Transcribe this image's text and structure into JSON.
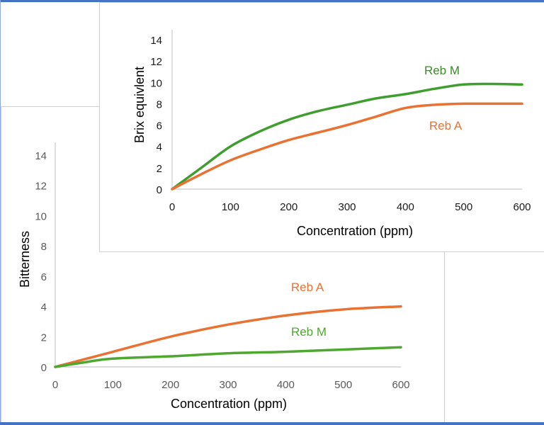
{
  "chart_data": [
    {
      "type": "line",
      "xlabel": "Concentration (ppm)",
      "ylabel": "Bitterness",
      "xlim": [
        0,
        600
      ],
      "ylim": [
        0,
        14
      ],
      "xticks": [
        "0",
        "100",
        "200",
        "300",
        "400",
        "500",
        "600"
      ],
      "yticks": [
        "0",
        "2",
        "4",
        "6",
        "8",
        "10",
        "12",
        "14"
      ],
      "grid": false,
      "legend": "inline labels",
      "series": [
        {
          "name": "Reb A",
          "color": "#e97132",
          "x": [
            0,
            100,
            200,
            300,
            400,
            500,
            600
          ],
          "y": [
            0,
            1.0,
            2.0,
            2.8,
            3.4,
            3.8,
            4.0
          ]
        },
        {
          "name": "Reb M",
          "color": "#4ea72e",
          "x": [
            0,
            50,
            100,
            200,
            300,
            400,
            500,
            600
          ],
          "y": [
            0,
            0.3,
            0.55,
            0.7,
            0.9,
            1.0,
            1.15,
            1.3
          ]
        }
      ]
    },
    {
      "type": "line",
      "xlabel": "Concentration (ppm)",
      "ylabel": "Brix equivlent",
      "xlim": [
        0,
        600
      ],
      "ylim": [
        0,
        14
      ],
      "xticks": [
        "0",
        "100",
        "200",
        "300",
        "400",
        "500",
        "600"
      ],
      "yticks": [
        "0",
        "2",
        "4",
        "6",
        "8",
        "10",
        "12",
        "14"
      ],
      "grid": false,
      "legend": "inline labels",
      "series": [
        {
          "name": "Reb M",
          "color": "#3f9e2f",
          "x": [
            0,
            50,
            100,
            150,
            200,
            250,
            300,
            350,
            400,
            450,
            500,
            550,
            600
          ],
          "y": [
            0,
            2.0,
            4.0,
            5.4,
            6.5,
            7.3,
            7.9,
            8.5,
            8.9,
            9.4,
            9.8,
            9.85,
            9.8
          ]
        },
        {
          "name": "Reb A",
          "color": "#e97132",
          "x": [
            0,
            50,
            100,
            150,
            200,
            250,
            300,
            350,
            400,
            450,
            500,
            550,
            600
          ],
          "y": [
            0,
            1.4,
            2.7,
            3.7,
            4.6,
            5.3,
            6.0,
            6.8,
            7.6,
            7.9,
            8.0,
            8.0,
            8.0
          ]
        }
      ]
    }
  ]
}
